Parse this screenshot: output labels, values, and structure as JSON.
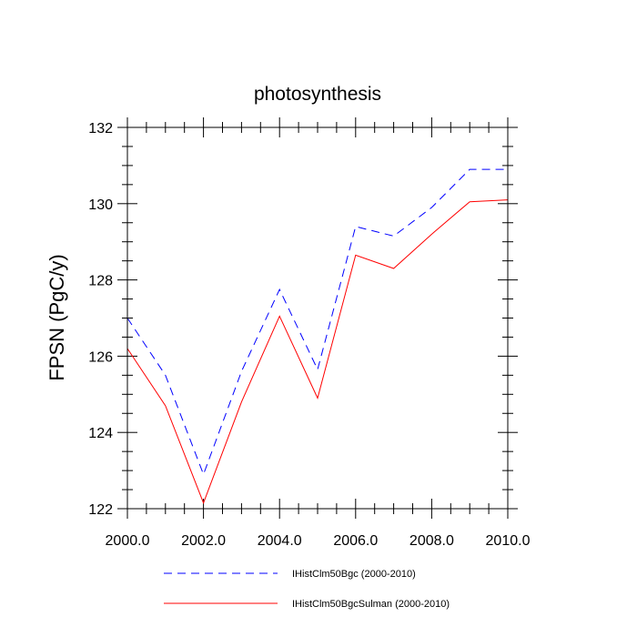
{
  "chart_data": {
    "type": "line",
    "title": "photosynthesis",
    "xlabel": "",
    "ylabel": "FPSN  (PgC/y)",
    "xlim": [
      2000,
      2010
    ],
    "ylim": [
      122,
      132
    ],
    "x_ticks": [
      2000,
      2002,
      2004,
      2006,
      2008,
      2010
    ],
    "x_tick_labels": [
      "2000.0",
      "2002.0",
      "2004.0",
      "2006.0",
      "2008.0",
      "2010.0"
    ],
    "y_ticks": [
      122,
      124,
      126,
      128,
      130,
      132
    ],
    "y_tick_labels": [
      "122",
      "124",
      "126",
      "128",
      "130",
      "132"
    ],
    "grid": false,
    "legend_position": "bottom",
    "x": [
      2000,
      2001,
      2002,
      2003,
      2004,
      2005,
      2006,
      2007,
      2008,
      2009,
      2010
    ],
    "series": [
      {
        "name": "IHistClm50Bgc (2000-2010)",
        "color": "#0000ff",
        "dash": "dashed",
        "values": [
          127.0,
          125.5,
          122.9,
          125.6,
          127.75,
          125.65,
          129.4,
          129.15,
          129.9,
          130.9,
          130.9
        ]
      },
      {
        "name": "IHistClm50BgcSulman (2000-2010)",
        "color": "#ff0000",
        "dash": "solid",
        "values": [
          126.2,
          124.7,
          122.15,
          124.8,
          127.05,
          124.9,
          128.65,
          128.3,
          129.2,
          130.05,
          130.1
        ]
      }
    ]
  }
}
